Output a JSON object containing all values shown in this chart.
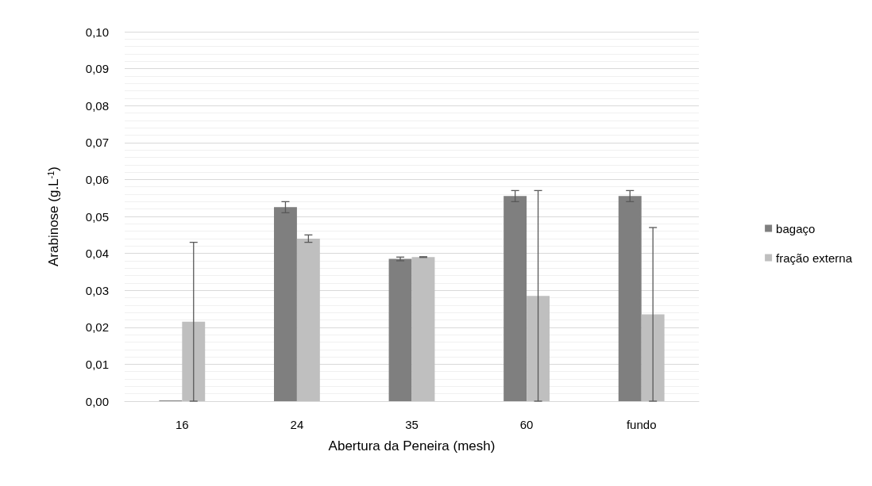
{
  "chart_data": {
    "type": "bar",
    "xlabel": "Abertura da Peneira (mesh)",
    "ylabel": "Arabinose (g.L$^{-1}$)",
    "categories": [
      "16",
      "24",
      "35",
      "60",
      "fundo"
    ],
    "series": [
      {
        "name": "bagaço",
        "color": "#7f7f7f",
        "values": [
          0.0002,
          0.0525,
          0.0385,
          0.0555,
          0.0555
        ],
        "errors": [
          null,
          0.0015,
          0.0005,
          0.0015,
          0.0015
        ]
      },
      {
        "name": "fração externa",
        "color": "#bfbfbf",
        "values": [
          0.0215,
          0.044,
          0.039,
          0.0285,
          0.0235
        ],
        "errors": [
          0.0215,
          0.001,
          0.0001,
          0.0285,
          0.0235
        ]
      }
    ],
    "ylim": [
      0,
      0.1
    ],
    "yticks": [
      {
        "value": 0,
        "label": "0,00"
      },
      {
        "value": 0.01,
        "label": "0,01"
      },
      {
        "value": 0.02,
        "label": "0,02"
      },
      {
        "value": 0.03,
        "label": "0,03"
      },
      {
        "value": 0.04,
        "label": "0,04"
      },
      {
        "value": 0.05,
        "label": "0,05"
      },
      {
        "value": 0.06,
        "label": "0,06"
      },
      {
        "value": 0.07,
        "label": "0,07"
      },
      {
        "value": 0.08,
        "label": "0,08"
      },
      {
        "value": 0.09,
        "label": "0,09"
      },
      {
        "value": 0.1,
        "label": "0,10"
      }
    ],
    "grid": "y",
    "legend": "right"
  }
}
